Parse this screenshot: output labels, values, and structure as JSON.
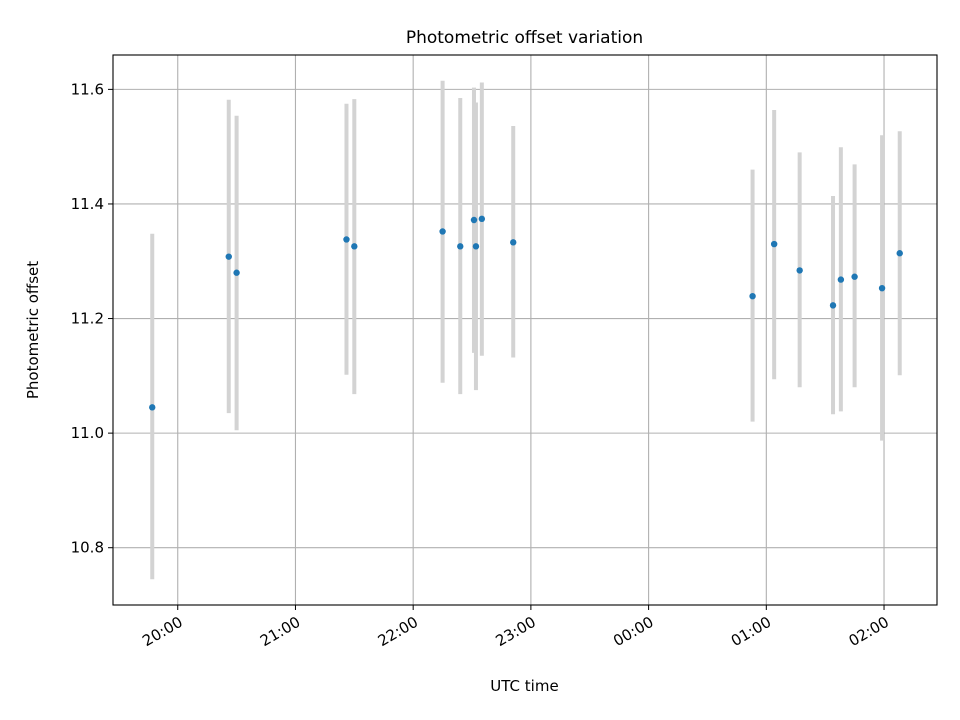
{
  "chart_data": {
    "type": "scatter",
    "title": "Photometric offset variation",
    "xlabel": "UTC time",
    "ylabel": "Photometric offset",
    "x_ticks": [
      "20:00",
      "21:00",
      "22:00",
      "23:00",
      "00:00",
      "01:00",
      "02:00"
    ],
    "y_ticks": [
      "10.8",
      "11.0",
      "11.2",
      "11.4",
      "11.6"
    ],
    "xlim": [
      "19:27",
      "02:27"
    ],
    "ylim": [
      10.7,
      11.66
    ],
    "grid": true,
    "series": [
      {
        "points": [
          {
            "time": "19:47",
            "y": 11.045,
            "err_low": 10.745,
            "err_high": 11.348
          },
          {
            "time": "20:26",
            "y": 11.308,
            "err_low": 11.035,
            "err_high": 11.582
          },
          {
            "time": "20:30",
            "y": 11.28,
            "err_low": 11.005,
            "err_high": 11.554
          },
          {
            "time": "21:26",
            "y": 11.338,
            "err_low": 11.102,
            "err_high": 11.575
          },
          {
            "time": "21:30",
            "y": 11.326,
            "err_low": 11.068,
            "err_high": 11.583
          },
          {
            "time": "22:15",
            "y": 11.352,
            "err_low": 11.088,
            "err_high": 11.615
          },
          {
            "time": "22:24",
            "y": 11.326,
            "err_low": 11.068,
            "err_high": 11.585
          },
          {
            "time": "22:31",
            "y": 11.372,
            "err_low": 11.14,
            "err_high": 11.603
          },
          {
            "time": "22:32",
            "y": 11.326,
            "err_low": 11.075,
            "err_high": 11.577
          },
          {
            "time": "22:35",
            "y": 11.374,
            "err_low": 11.135,
            "err_high": 11.612
          },
          {
            "time": "22:51",
            "y": 11.333,
            "err_low": 11.132,
            "err_high": 11.536
          },
          {
            "time": "00:53",
            "y": 11.239,
            "err_low": 11.02,
            "err_high": 11.46
          },
          {
            "time": "01:04",
            "y": 11.33,
            "err_low": 11.094,
            "err_high": 11.564
          },
          {
            "time": "01:17",
            "y": 11.284,
            "err_low": 11.08,
            "err_high": 11.49
          },
          {
            "time": "01:34",
            "y": 11.223,
            "err_low": 11.033,
            "err_high": 11.414
          },
          {
            "time": "01:38",
            "y": 11.268,
            "err_low": 11.038,
            "err_high": 11.499
          },
          {
            "time": "01:45",
            "y": 11.273,
            "err_low": 11.08,
            "err_high": 11.469
          },
          {
            "time": "01:59",
            "y": 11.253,
            "err_low": 10.987,
            "err_high": 11.52
          },
          {
            "time": "02:08",
            "y": 11.314,
            "err_low": 11.101,
            "err_high": 11.527
          }
        ]
      }
    ],
    "colors": {
      "marker": "#1f77b4",
      "errorbar": "#d3d3d3",
      "grid": "#b0b0b0",
      "axes": "#000000"
    }
  }
}
